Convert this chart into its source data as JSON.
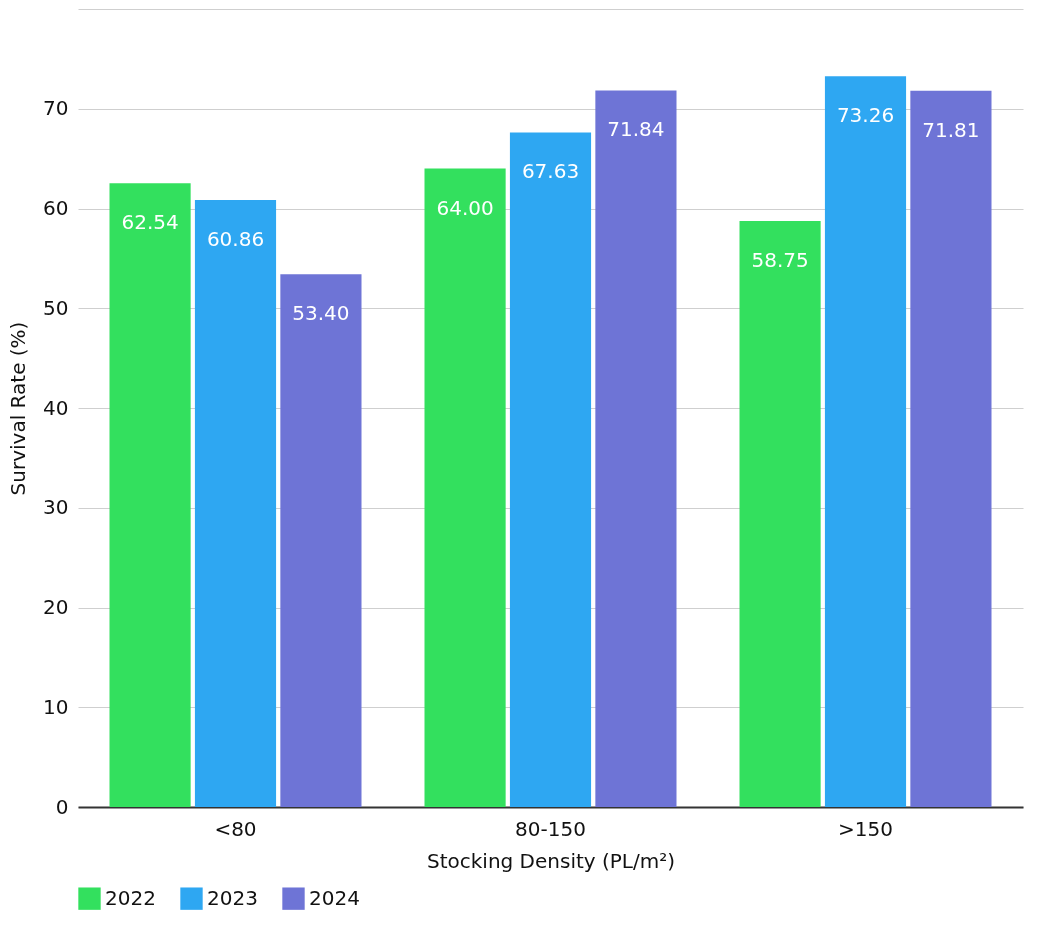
{
  "chart_data": {
    "type": "bar",
    "xlabel": "Stocking Density (PL/m²)",
    "ylabel": "Survival Rate (%)",
    "categories": [
      "<80",
      "80-150",
      ">150"
    ],
    "series": [
      {
        "name": "2022",
        "color": "#33e05e",
        "values": [
          62.54,
          64.0,
          58.75
        ],
        "value_labels": [
          "62.54",
          "64.00",
          "58.75"
        ]
      },
      {
        "name": "2023",
        "color": "#2ea7f2",
        "values": [
          60.86,
          67.63,
          73.26
        ],
        "value_labels": [
          "60.86",
          "67.63",
          "73.26"
        ]
      },
      {
        "name": "2024",
        "color": "#6e74d6",
        "values": [
          53.4,
          71.84,
          71.81
        ],
        "value_labels": [
          "53.40",
          "71.84",
          "71.81"
        ]
      }
    ],
    "ylim": [
      0,
      80
    ],
    "yticks": [
      0,
      10,
      20,
      30,
      40,
      50,
      60,
      70,
      {
        "value": 80,
        "label": null
      }
    ],
    "grid": "y",
    "legend": "bottom"
  }
}
